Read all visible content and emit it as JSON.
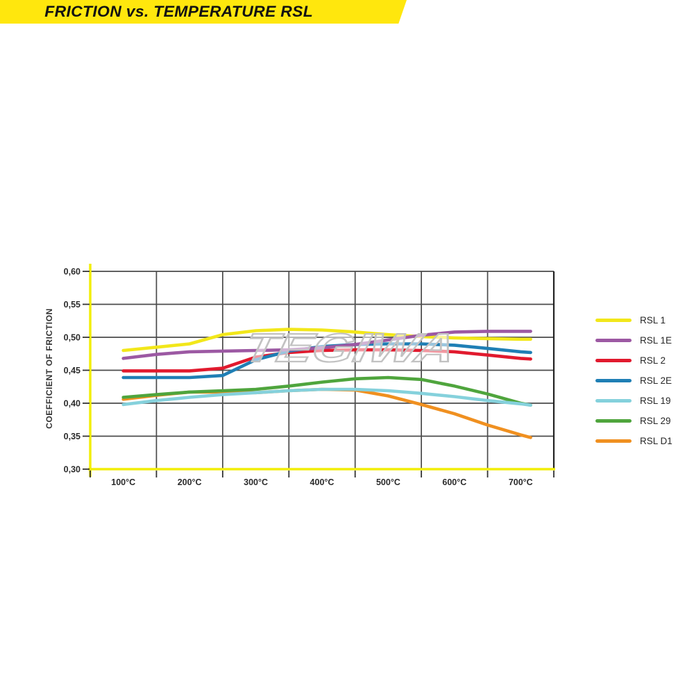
{
  "banner": {
    "title": "FRICTION vs. TEMPERATURE RSL",
    "background_color": "#ffe70d",
    "text_color": "#121212"
  },
  "watermark": {
    "text": "TEGIWA",
    "color": "#c2c2c2"
  },
  "chart_data": {
    "type": "line",
    "title": "FRICTION vs. TEMPERATURE RSL",
    "xlabel": "",
    "ylabel": "COEFFICIENT OF FRICTION",
    "x_unit": "°C",
    "x_tick_labels": [
      "100°C",
      "200°C",
      "300°C",
      "400°C",
      "500°C",
      "600°C",
      "700°C"
    ],
    "y_ticks": [
      0.6,
      0.55,
      0.5,
      0.45,
      0.4,
      0.35,
      0.3
    ],
    "y_tick_labels": [
      "0,60",
      "0,55",
      "0,50",
      "0,45",
      "0,40",
      "0,35",
      "0,30"
    ],
    "ylim": [
      0.3,
      0.6
    ],
    "xlim": [
      100,
      715
    ],
    "grid": true,
    "legend_position": "right",
    "axis_color": "#f2ee08",
    "grid_color": "#4a4a4a",
    "x": [
      100,
      150,
      200,
      250,
      300,
      350,
      400,
      450,
      500,
      550,
      600,
      650,
      700,
      715
    ],
    "series": [
      {
        "name": "RSL 1",
        "color": "#f2e71a",
        "values": [
          0.48,
          0.485,
          0.49,
          0.504,
          0.51,
          0.512,
          0.511,
          0.508,
          0.504,
          0.501,
          0.499,
          0.498,
          0.497,
          0.497
        ]
      },
      {
        "name": "RSL 1E",
        "color": "#9c59a3",
        "values": [
          0.468,
          0.474,
          0.478,
          0.479,
          0.48,
          0.481,
          0.484,
          0.489,
          0.496,
          0.503,
          0.508,
          0.509,
          0.509,
          0.509
        ]
      },
      {
        "name": "RSL 2",
        "color": "#e11a2e",
        "values": [
          0.449,
          0.449,
          0.449,
          0.453,
          0.47,
          0.477,
          0.48,
          0.481,
          0.481,
          0.48,
          0.478,
          0.473,
          0.468,
          0.467
        ]
      },
      {
        "name": "RSL 2E",
        "color": "#1f7fb5",
        "values": [
          0.439,
          0.439,
          0.439,
          0.442,
          0.466,
          0.479,
          0.486,
          0.489,
          0.49,
          0.49,
          0.488,
          0.483,
          0.478,
          0.477
        ]
      },
      {
        "name": "RSL 19",
        "color": "#85d1dc",
        "values": [
          0.398,
          0.404,
          0.409,
          0.413,
          0.416,
          0.419,
          0.421,
          0.421,
          0.419,
          0.415,
          0.41,
          0.404,
          0.399,
          0.397
        ]
      },
      {
        "name": "RSL 29",
        "color": "#4fa53d",
        "values": [
          0.409,
          0.413,
          0.417,
          0.419,
          0.421,
          0.426,
          0.432,
          0.437,
          0.439,
          0.436,
          0.426,
          0.414,
          0.4,
          0.397
        ]
      },
      {
        "name": "RSL D1",
        "color": "#f09020",
        "values": [
          0.406,
          0.412,
          0.417,
          0.417,
          0.416,
          0.419,
          0.421,
          0.42,
          0.411,
          0.398,
          0.384,
          0.367,
          0.352,
          0.348
        ]
      }
    ]
  }
}
